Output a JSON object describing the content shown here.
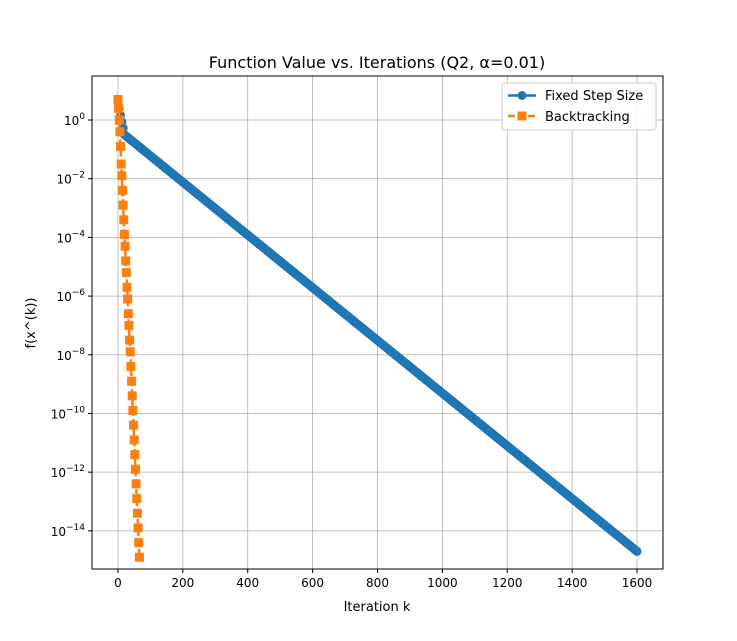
{
  "chart_data": {
    "type": "line",
    "title": "Function Value vs. Iterations (Q2, α=0.01)",
    "xlabel": "Iteration k",
    "ylabel": "f(x^(k))",
    "yscale": "log",
    "xlim": [
      -80,
      1680
    ],
    "ylim_log10": [
      -15.3,
      1.5
    ],
    "xticks": [
      0,
      200,
      400,
      600,
      800,
      1000,
      1200,
      1400,
      1600
    ],
    "xtick_labels": [
      "0",
      "200",
      "400",
      "600",
      "800",
      "1000",
      "1200",
      "1400",
      "1600"
    ],
    "yticks_log10": [
      0,
      -2,
      -4,
      -6,
      -8,
      -10,
      -12,
      -14
    ],
    "ytick_labels": [
      {
        "base": "10",
        "exp": "0"
      },
      {
        "base": "10",
        "exp": "−2"
      },
      {
        "base": "10",
        "exp": "−4"
      },
      {
        "base": "10",
        "exp": "−6"
      },
      {
        "base": "10",
        "exp": "−8"
      },
      {
        "base": "10",
        "exp": "−10"
      },
      {
        "base": "10",
        "exp": "−12"
      },
      {
        "base": "10",
        "exp": "−14"
      }
    ],
    "grid": true,
    "legend_position": "top-right",
    "series": [
      {
        "name": "Fixed Step Size",
        "color": "#1f77b4",
        "marker": "circle",
        "linestyle": "solid",
        "log10_piecewise": [
          [
            0,
            0.6
          ],
          [
            20,
            -0.5
          ],
          [
            1600,
            -14.7
          ]
        ]
      },
      {
        "name": "Backtracking",
        "color": "#ff7f0e",
        "marker": "square",
        "linestyle": "dashed",
        "log10_points": [
          [
            0,
            0.7
          ],
          [
            2,
            0.4
          ],
          [
            4,
            0.0
          ],
          [
            6,
            -0.4
          ],
          [
            8,
            -0.9
          ],
          [
            10,
            -1.5
          ],
          [
            12,
            -1.9
          ],
          [
            14,
            -2.4
          ],
          [
            16,
            -2.9
          ],
          [
            18,
            -3.4
          ],
          [
            20,
            -3.9
          ],
          [
            22,
            -4.3
          ],
          [
            24,
            -4.8
          ],
          [
            26,
            -5.2
          ],
          [
            28,
            -5.7
          ],
          [
            30,
            -6.1
          ],
          [
            32,
            -6.6
          ],
          [
            34,
            -7.0
          ],
          [
            36,
            -7.5
          ],
          [
            38,
            -7.9
          ],
          [
            40,
            -8.4
          ],
          [
            42,
            -8.9
          ],
          [
            44,
            -9.4
          ],
          [
            46,
            -9.9
          ],
          [
            48,
            -10.4
          ],
          [
            50,
            -10.9
          ],
          [
            52,
            -11.4
          ],
          [
            54,
            -11.9
          ],
          [
            56,
            -12.4
          ],
          [
            58,
            -12.9
          ],
          [
            60,
            -13.4
          ],
          [
            62,
            -13.9
          ],
          [
            64,
            -14.4
          ],
          [
            66,
            -14.9
          ]
        ]
      }
    ]
  }
}
